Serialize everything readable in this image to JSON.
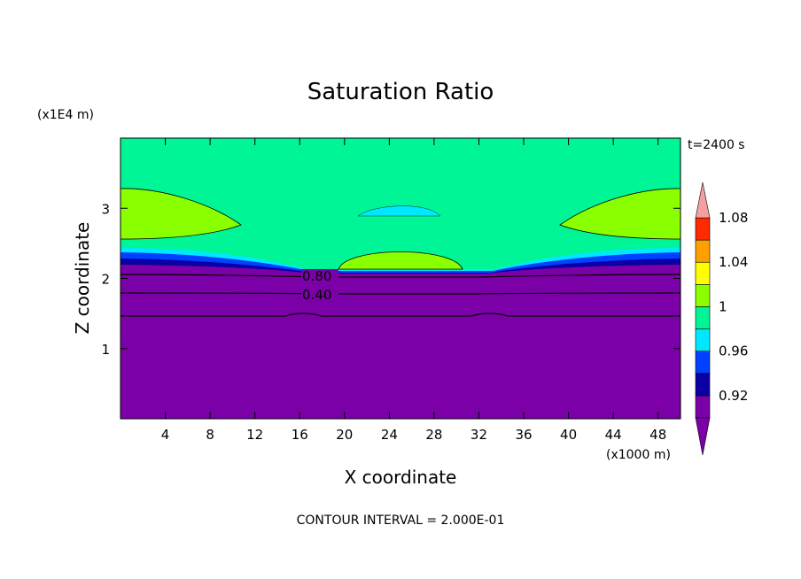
{
  "chart_data": {
    "type": "heatmap",
    "title": "Saturation Ratio",
    "xlabel": "X coordinate",
    "ylabel": "Z coordinate",
    "x_scale_label": "(x1000 m)",
    "y_scale_label": "(x1E4 m)",
    "time_label": "t=2400 s",
    "footer": "CONTOUR INTERVAL = 2.000E-01",
    "xlim": [
      0,
      50
    ],
    "ylim": [
      0,
      4
    ],
    "x_ticks": [
      "4",
      "8",
      "12",
      "16",
      "20",
      "24",
      "28",
      "32",
      "36",
      "40",
      "44",
      "48"
    ],
    "y_ticks": [
      "1",
      "2",
      "3"
    ],
    "contour_labels": [
      "0.80",
      "0.40"
    ],
    "colorbar": {
      "labels": [
        "1.08",
        "1.04",
        "1",
        "0.96",
        "0.92"
      ],
      "levels": [
        0.9,
        0.92,
        0.94,
        0.96,
        0.98,
        1.0,
        1.02,
        1.04,
        1.06,
        1.08,
        1.1
      ],
      "colors": [
        "#7b00a8",
        "#0b00a3",
        "#0040ff",
        "#00e8ff",
        "#00f596",
        "#8aff00",
        "#ffff00",
        "#ff9f00",
        "#ff2a00",
        "#ff3333",
        "#f4a0a0"
      ],
      "low_extend_color": "#7b00a8",
      "high_extend_color": "#f4a0a0"
    }
  }
}
